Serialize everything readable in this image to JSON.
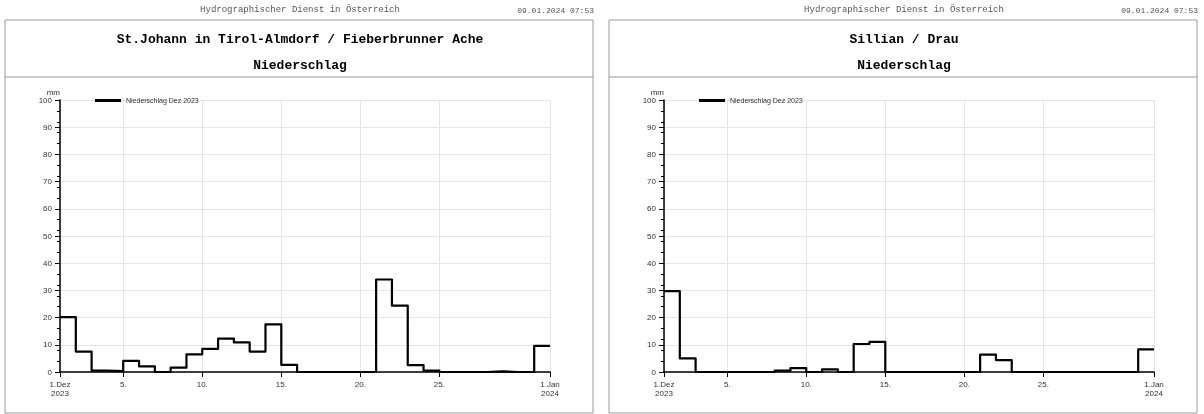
{
  "chart_data": [
    {
      "type": "step",
      "title": "St.Johann in Tirol-Almdorf / Fieberbrunner Ache",
      "subtitle": "Niederschlag",
      "ylabel": "mm",
      "annotations": [
        "Hydrographischer Dienst in Österreich",
        "09.01.2024 07:53"
      ],
      "x": [
        "2023-12-01",
        "2023-12-02",
        "2023-12-03",
        "2023-12-04",
        "2023-12-05",
        "2023-12-06",
        "2023-12-07",
        "2023-12-08",
        "2023-12-09",
        "2023-12-10",
        "2023-12-11",
        "2023-12-12",
        "2023-12-13",
        "2023-12-14",
        "2023-12-15",
        "2023-12-16",
        "2023-12-17",
        "2023-12-18",
        "2023-12-19",
        "2023-12-20",
        "2023-12-21",
        "2023-12-22",
        "2023-12-23",
        "2023-12-24",
        "2023-12-25",
        "2023-12-26",
        "2023-12-27",
        "2023-12-28",
        "2023-12-29",
        "2023-12-30",
        "2023-12-31",
        "2024-01-01"
      ],
      "series": [
        {
          "name": "Niederschlag Dez 2023",
          "color": "#000000",
          "values": [
            20.2,
            7.5,
            0.5,
            0.3,
            4.1,
            2.1,
            0,
            1.6,
            6.5,
            8.5,
            12.3,
            10.9,
            7.5,
            17.5,
            2.6,
            0,
            0,
            0,
            0,
            0,
            34,
            24.4,
            2.5,
            0.5,
            0,
            0,
            0,
            0.2,
            0,
            0,
            9.6,
            9.6
          ]
        }
      ],
      "xlim": [
        "2023-12-01",
        "2024-01-01"
      ],
      "xticks": [
        {
          "value": "2023-12-01",
          "label": "1.Dez\n2023"
        },
        {
          "value": "2023-12-05",
          "label": "5."
        },
        {
          "value": "2023-12-10",
          "label": "10."
        },
        {
          "value": "2023-12-15",
          "label": "15."
        },
        {
          "value": "2023-12-20",
          "label": "20."
        },
        {
          "value": "2023-12-25",
          "label": "25."
        },
        {
          "value": "2024-01-01",
          "label": "1.Jan\n2024"
        }
      ],
      "ylim": [
        0,
        100
      ],
      "yticks": [
        0,
        10,
        20,
        30,
        40,
        50,
        60,
        70,
        80,
        90,
        100
      ],
      "grid": true,
      "legend": "top left"
    },
    {
      "type": "step",
      "title": "Sillian / Drau",
      "subtitle": "Niederschlag",
      "ylabel": "mm",
      "annotations": [
        "Hydrographischer Dienst in Österreich",
        "09.01.2024 07:53"
      ],
      "x": [
        "2023-12-01",
        "2023-12-02",
        "2023-12-03",
        "2023-12-04",
        "2023-12-05",
        "2023-12-06",
        "2023-12-07",
        "2023-12-08",
        "2023-12-09",
        "2023-12-10",
        "2023-12-11",
        "2023-12-12",
        "2023-12-13",
        "2023-12-14",
        "2023-12-15",
        "2023-12-16",
        "2023-12-17",
        "2023-12-18",
        "2023-12-19",
        "2023-12-20",
        "2023-12-21",
        "2023-12-22",
        "2023-12-23",
        "2023-12-24",
        "2023-12-25",
        "2023-12-26",
        "2023-12-27",
        "2023-12-28",
        "2023-12-29",
        "2023-12-30",
        "2023-12-31",
        "2024-01-01"
      ],
      "series": [
        {
          "name": "Niederschlag Dez 2023",
          "color": "#000000",
          "values": [
            29.7,
            5,
            0,
            0,
            0,
            0,
            0,
            0.5,
            1.4,
            0,
            1,
            0,
            10.3,
            11.1,
            0,
            0,
            0,
            0,
            0,
            0,
            6.4,
            4.4,
            0,
            0,
            0,
            0,
            0,
            0,
            0,
            0,
            8.3,
            8.3
          ]
        }
      ],
      "xlim": [
        "2023-12-01",
        "2024-01-01"
      ],
      "xticks": [
        {
          "value": "2023-12-01",
          "label": "1.Dez\n2023"
        },
        {
          "value": "2023-12-05",
          "label": "5."
        },
        {
          "value": "2023-12-10",
          "label": "10."
        },
        {
          "value": "2023-12-15",
          "label": "15."
        },
        {
          "value": "2023-12-20",
          "label": "20."
        },
        {
          "value": "2023-12-25",
          "label": "25."
        },
        {
          "value": "2024-01-01",
          "label": "1.Jan\n2024"
        }
      ],
      "ylim": [
        0,
        100
      ],
      "yticks": [
        0,
        10,
        20,
        30,
        40,
        50,
        60,
        70,
        80,
        90,
        100
      ],
      "grid": true,
      "legend": "top left"
    }
  ]
}
